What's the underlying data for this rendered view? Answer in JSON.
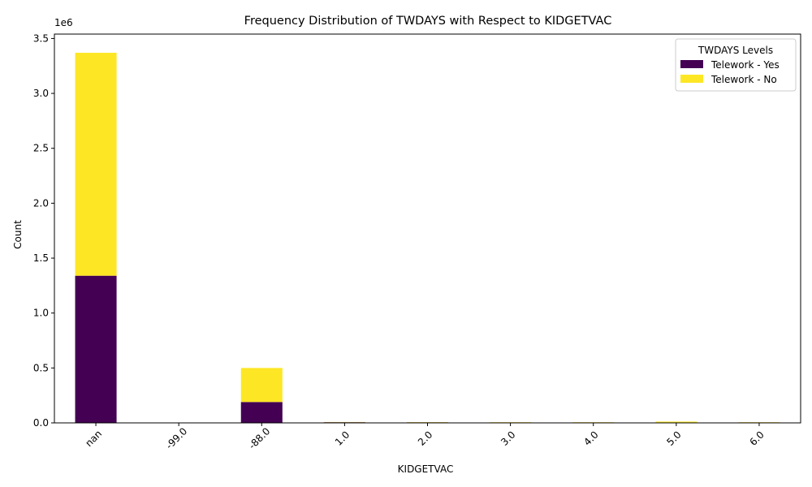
{
  "chart_data": {
    "type": "bar",
    "stacked": true,
    "title": "Frequency Distribution of TWDAYS with Respect to KIDGETVAC",
    "xlabel": "KIDGETVAC",
    "ylabel": "Count",
    "y_scale_label": "1e6",
    "y_tick_values": [
      0.0,
      0.5,
      1.0,
      1.5,
      2.0,
      2.5,
      3.0,
      3.5
    ],
    "y_tick_labels": [
      "0.0",
      "0.5",
      "1.0",
      "1.5",
      "2.0",
      "2.5",
      "3.0",
      "3.5"
    ],
    "ylim": [
      0,
      3.54
    ],
    "categories": [
      "nan",
      "-99.0",
      "-88.0",
      "1.0",
      "2.0",
      "3.0",
      "4.0",
      "5.0",
      "6.0"
    ],
    "legend": {
      "title": "TWDAYS Levels",
      "placement": "top-right"
    },
    "series": [
      {
        "name": "Telework - Yes",
        "color": "#440154",
        "values": [
          1.34,
          0.0,
          0.19,
          0.006,
          0.005,
          0.004,
          0.004,
          0.004,
          0.004
        ]
      },
      {
        "name": "Telework - No",
        "color": "#fde725",
        "values": [
          2.03,
          0.0,
          0.31,
          0.002,
          0.002,
          0.002,
          0.002,
          0.008,
          0.002
        ]
      }
    ]
  }
}
